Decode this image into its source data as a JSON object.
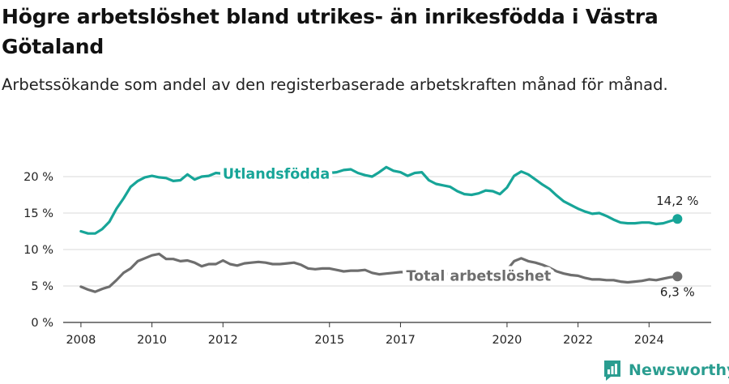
{
  "title": "Högre arbetslöshet bland utrikes- än inrikesfödda i Västra Götaland",
  "subtitle": "Arbetssökande som andel av den registerbaserade arbetskraften månad för månad.",
  "brand": {
    "name": "Newsworthy",
    "color": "#2a9d90"
  },
  "chart_data": {
    "type": "line",
    "xlim": [
      2007.5,
      2025.75
    ],
    "ylim": [
      0,
      22
    ],
    "y_ticks": [
      0,
      5,
      10,
      15,
      20
    ],
    "y_tick_labels": [
      "0 %",
      "5 %",
      "10 %",
      "15 %",
      "20 %"
    ],
    "x_ticks": [
      2008,
      2010,
      2012,
      2015,
      2017,
      2020,
      2022,
      2024
    ],
    "x_tick_labels": [
      "2008",
      "2010",
      "2012",
      "2015",
      "2017",
      "2020",
      "2022",
      "2024"
    ],
    "grid": "horizontal",
    "series": [
      {
        "name": "Utlandsfödda",
        "color": "#17a598",
        "end_label": "14,2 %",
        "x": [
          2008.0,
          2008.2,
          2008.4,
          2008.6,
          2008.8,
          2009.0,
          2009.2,
          2009.4,
          2009.6,
          2009.8,
          2010.0,
          2010.2,
          2010.4,
          2010.6,
          2010.8,
          2011.0,
          2011.2,
          2011.4,
          2011.6,
          2011.8,
          2012.0,
          2012.2,
          2012.4,
          2012.6,
          2012.8,
          2013.0,
          2013.2,
          2013.4,
          2013.6,
          2013.8,
          2014.0,
          2014.2,
          2014.4,
          2014.6,
          2014.8,
          2015.0,
          2015.2,
          2015.4,
          2015.6,
          2015.8,
          2016.0,
          2016.2,
          2016.4,
          2016.6,
          2016.8,
          2017.0,
          2017.2,
          2017.4,
          2017.6,
          2017.8,
          2018.0,
          2018.2,
          2018.4,
          2018.6,
          2018.8,
          2019.0,
          2019.2,
          2019.4,
          2019.6,
          2019.8,
          2020.0,
          2020.2,
          2020.4,
          2020.6,
          2020.8,
          2021.0,
          2021.2,
          2021.4,
          2021.6,
          2021.8,
          2022.0,
          2022.2,
          2022.4,
          2022.6,
          2022.8,
          2023.0,
          2023.2,
          2023.4,
          2023.6,
          2023.8,
          2024.0,
          2024.2,
          2024.4,
          2024.6,
          2024.8
        ],
        "y": [
          12.5,
          12.2,
          12.2,
          12.8,
          13.8,
          15.6,
          17.0,
          18.6,
          19.4,
          19.9,
          20.1,
          19.9,
          19.8,
          19.4,
          19.5,
          20.3,
          19.6,
          20.0,
          20.1,
          20.5,
          20.4,
          20.3,
          20.2,
          20.5,
          20.4,
          20.6,
          20.5,
          20.4,
          20.3,
          20.4,
          20.5,
          20.3,
          19.4,
          20.2,
          20.4,
          20.5,
          20.6,
          20.9,
          21.0,
          20.5,
          20.2,
          20.0,
          20.6,
          21.3,
          20.8,
          20.6,
          20.1,
          20.5,
          20.6,
          19.5,
          19.0,
          18.8,
          18.6,
          18.0,
          17.6,
          17.5,
          17.7,
          18.1,
          18.0,
          17.6,
          18.5,
          20.1,
          20.7,
          20.3,
          19.6,
          18.9,
          18.3,
          17.4,
          16.6,
          16.1,
          15.6,
          15.2,
          14.9,
          15.0,
          14.6,
          14.1,
          13.7,
          13.6,
          13.6,
          13.7,
          13.7,
          13.5,
          13.6,
          13.9,
          14.2
        ]
      },
      {
        "name": "Total arbetslöshet",
        "color": "#6e6e6e",
        "end_label": "6,3 %",
        "x": [
          2008.0,
          2008.2,
          2008.4,
          2008.6,
          2008.8,
          2009.0,
          2009.2,
          2009.4,
          2009.6,
          2009.8,
          2010.0,
          2010.2,
          2010.4,
          2010.6,
          2010.8,
          2011.0,
          2011.2,
          2011.4,
          2011.6,
          2011.8,
          2012.0,
          2012.2,
          2012.4,
          2012.6,
          2012.8,
          2013.0,
          2013.2,
          2013.4,
          2013.6,
          2013.8,
          2014.0,
          2014.2,
          2014.4,
          2014.6,
          2014.8,
          2015.0,
          2015.2,
          2015.4,
          2015.6,
          2015.8,
          2016.0,
          2016.2,
          2016.4,
          2016.6,
          2016.8,
          2017.0,
          2017.2,
          2017.4,
          2017.6,
          2017.8,
          2018.0,
          2018.2,
          2018.4,
          2018.6,
          2018.8,
          2019.0,
          2019.2,
          2019.4,
          2019.6,
          2019.8,
          2020.0,
          2020.2,
          2020.4,
          2020.6,
          2020.8,
          2021.0,
          2021.2,
          2021.4,
          2021.6,
          2021.8,
          2022.0,
          2022.2,
          2022.4,
          2022.6,
          2022.8,
          2023.0,
          2023.2,
          2023.4,
          2023.6,
          2023.8,
          2024.0,
          2024.2,
          2024.4,
          2024.6,
          2024.8
        ],
        "y": [
          4.9,
          4.5,
          4.2,
          4.6,
          4.9,
          5.8,
          6.8,
          7.4,
          8.4,
          8.8,
          9.2,
          9.4,
          8.7,
          8.7,
          8.4,
          8.5,
          8.2,
          7.7,
          8.0,
          8.0,
          8.5,
          8.0,
          7.8,
          8.1,
          8.2,
          8.3,
          8.2,
          8.0,
          8.0,
          8.1,
          8.2,
          7.9,
          7.4,
          7.3,
          7.4,
          7.4,
          7.2,
          7.0,
          7.1,
          7.1,
          7.2,
          6.8,
          6.6,
          6.7,
          6.8,
          6.9,
          6.9,
          6.8,
          6.8,
          6.6,
          6.7,
          6.6,
          6.7,
          6.6,
          6.5,
          6.6,
          6.7,
          6.8,
          6.8,
          6.8,
          7.2,
          8.4,
          8.8,
          8.4,
          8.2,
          7.9,
          7.5,
          7.0,
          6.7,
          6.5,
          6.4,
          6.1,
          5.9,
          5.9,
          5.8,
          5.8,
          5.6,
          5.5,
          5.6,
          5.7,
          5.9,
          5.8,
          6.0,
          6.2,
          6.3
        ]
      }
    ]
  }
}
